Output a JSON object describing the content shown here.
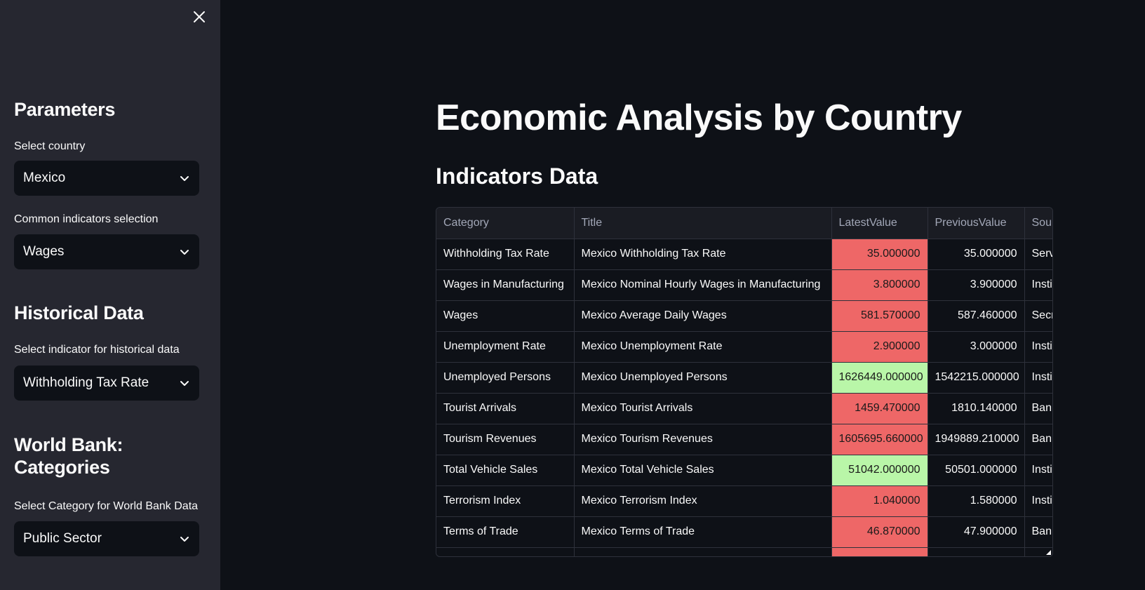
{
  "sidebar": {
    "parameters_heading": "Parameters",
    "country_label": "Select country",
    "country_value": "Mexico",
    "indicators_label": "Common indicators selection",
    "indicators_value": "Wages",
    "historical_heading": "Historical Data",
    "historical_label": "Select indicator for historical data",
    "historical_value": "Withholding Tax Rate",
    "worldbank_heading_line1": "World Bank:",
    "worldbank_heading_line2": "Categories",
    "worldbank_label": "Select Category for World Bank Data",
    "worldbank_value": "Public Sector"
  },
  "main": {
    "title": "Economic Analysis by Country",
    "subtitle": "Indicators Data"
  },
  "table": {
    "columns": [
      "Category",
      "Title",
      "LatestValue",
      "PreviousValue",
      "Sour"
    ],
    "rows": [
      {
        "category": "Withholding Tax Rate",
        "title": "Mexico Withholding Tax Rate",
        "latest": "35.000000",
        "previous": "35.000000",
        "source": "Serv",
        "color": "red"
      },
      {
        "category": "Wages in Manufacturing",
        "title": "Mexico Nominal Hourly Wages in Manufacturing",
        "latest": "3.800000",
        "previous": "3.900000",
        "source": "Insti",
        "color": "red"
      },
      {
        "category": "Wages",
        "title": "Mexico Average Daily Wages",
        "latest": "581.570000",
        "previous": "587.460000",
        "source": "Secr",
        "color": "red"
      },
      {
        "category": "Unemployment Rate",
        "title": "Mexico Unemployment Rate",
        "latest": "2.900000",
        "previous": "3.000000",
        "source": "Insti",
        "color": "red"
      },
      {
        "category": "Unemployed Persons",
        "title": "Mexico Unemployed Persons",
        "latest": "1626449.000000",
        "previous": "1542215.000000",
        "source": "Insti",
        "color": "green"
      },
      {
        "category": "Tourist Arrivals",
        "title": "Mexico Tourist Arrivals",
        "latest": "1459.470000",
        "previous": "1810.140000",
        "source": "Ban",
        "color": "red"
      },
      {
        "category": "Tourism Revenues",
        "title": "Mexico Tourism Revenues",
        "latest": "1605695.660000",
        "previous": "1949889.210000",
        "source": "Ban",
        "color": "red"
      },
      {
        "category": "Total Vehicle Sales",
        "title": "Mexico Total Vehicle Sales",
        "latest": "51042.000000",
        "previous": "50501.000000",
        "source": "Insti",
        "color": "green"
      },
      {
        "category": "Terrorism Index",
        "title": "Mexico Terrorism Index",
        "latest": "1.040000",
        "previous": "1.580000",
        "source": "Insti",
        "color": "red"
      },
      {
        "category": "Terms of Trade",
        "title": "Mexico Terms of Trade",
        "latest": "46.870000",
        "previous": "47.900000",
        "source": "Ban",
        "color": "red"
      },
      {
        "category": "",
        "title": "",
        "latest": "",
        "previous": "",
        "source": "",
        "color": "red"
      }
    ]
  },
  "icons": {
    "close": "close-icon",
    "chevron": "chevron-down-icon"
  },
  "colors": {
    "decrease": "#ee6767",
    "increase": "#b9f6a8",
    "sidebar_bg": "#262730",
    "main_bg": "#0e1117"
  }
}
